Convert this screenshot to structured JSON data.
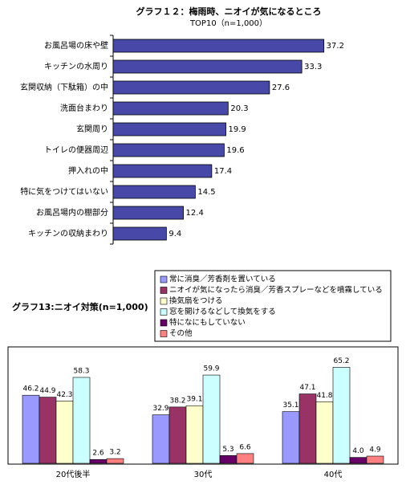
{
  "chart_data": [
    {
      "type": "bar",
      "orientation": "horizontal",
      "title": "グラフ１２：梅雨時、ニオイが気になるところ",
      "subtitle": "TOP10（n=1,000）",
      "categories": [
        "お風呂場の床や壁",
        "キッチンの水周り",
        "玄関収納（下駄箱）の中",
        "洗面台まわり",
        "玄関周り",
        "トイレの便器周辺",
        "押入れの中",
        "特に気をつけてはいない",
        "お風呂場内の棚部分",
        "キッチンの収納まわり"
      ],
      "values": [
        37.2,
        33.3,
        27.6,
        20.3,
        19.9,
        19.6,
        17.4,
        14.5,
        12.4,
        9.4
      ],
      "color": "#4848a8",
      "xlim": [
        0,
        49
      ]
    },
    {
      "type": "bar",
      "title": "グラフ13:ニオイ対策(n=1,000)",
      "categories": [
        "20代後半",
        "30代",
        "40代"
      ],
      "series": [
        {
          "name": "常に消臭／芳香剤を置いている",
          "color": "#9999ff",
          "values": [
            46.2,
            32.9,
            35.1
          ]
        },
        {
          "name": "ニオイが気になったら消臭／芳香スプレーなどを噴霧している",
          "color": "#993366",
          "values": [
            44.9,
            38.2,
            47.1
          ]
        },
        {
          "name": "換気扇をつける",
          "color": "#ffffcc",
          "values": [
            42.3,
            39.1,
            41.8
          ]
        },
        {
          "name": "窓を開けるなどして換気をする",
          "color": "#ccffff",
          "values": [
            58.3,
            59.9,
            65.2
          ]
        },
        {
          "name": "特になにもしていない",
          "color": "#660066",
          "values": [
            2.6,
            5.3,
            4.0
          ],
          "value_labels": [
            "2.6",
            "5.3",
            "4.0"
          ]
        },
        {
          "name": "その他",
          "color": "#ff8080",
          "values": [
            3.2,
            6.6,
            4.9
          ]
        }
      ],
      "ylim": [
        0,
        79
      ]
    }
  ]
}
